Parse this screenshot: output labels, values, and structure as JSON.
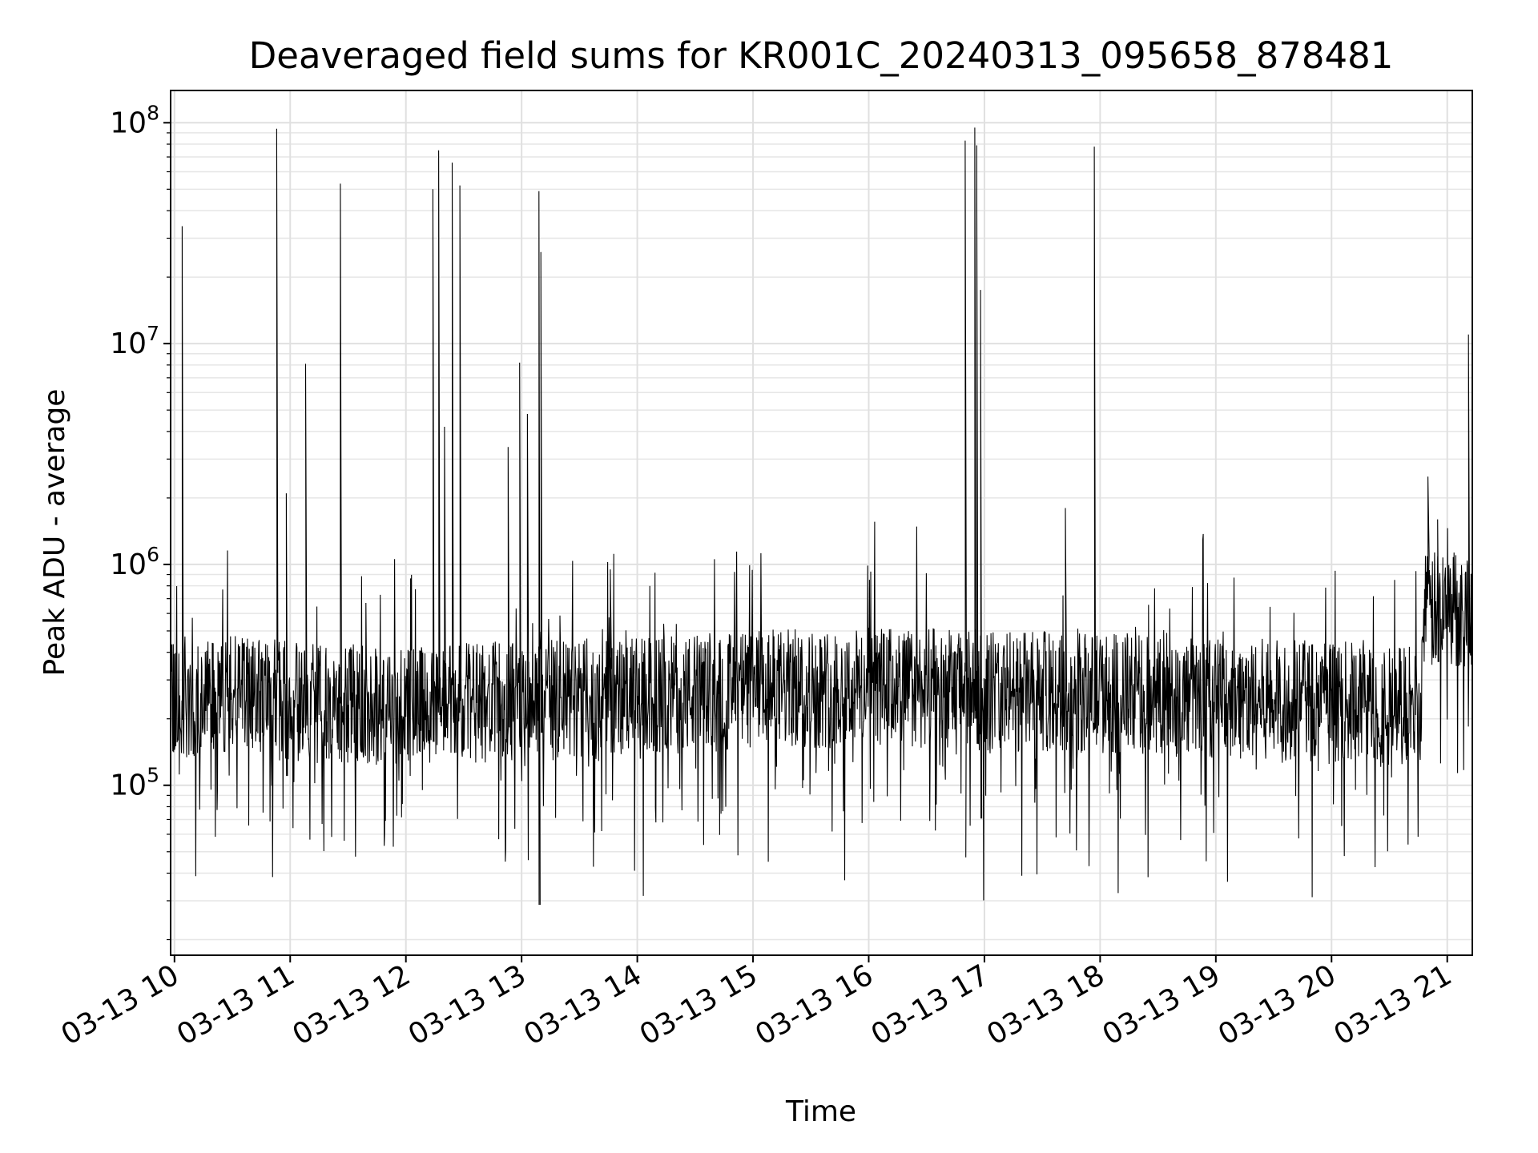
{
  "chart_data": {
    "type": "line",
    "title": "Deaveraged field sums for KR001C_20240313_095658_878481",
    "xlabel": "Time",
    "ylabel": "Peak ADU - average",
    "yscale": "log",
    "grid": true,
    "legend": "none",
    "line_color": "#000000",
    "xlim": [
      "2024-03-13 09:58",
      "2024-03-13 21:13"
    ],
    "ylim": [
      17000,
      140000000
    ],
    "x_ticks": [
      {
        "value": "2024-03-13 10:00",
        "label": "03-13 10"
      },
      {
        "value": "2024-03-13 11:00",
        "label": "03-13 11"
      },
      {
        "value": "2024-03-13 12:00",
        "label": "03-13 12"
      },
      {
        "value": "2024-03-13 13:00",
        "label": "03-13 13"
      },
      {
        "value": "2024-03-13 14:00",
        "label": "03-13 14"
      },
      {
        "value": "2024-03-13 15:00",
        "label": "03-13 15"
      },
      {
        "value": "2024-03-13 16:00",
        "label": "03-13 16"
      },
      {
        "value": "2024-03-13 17:00",
        "label": "03-13 17"
      },
      {
        "value": "2024-03-13 18:00",
        "label": "03-13 18"
      },
      {
        "value": "2024-03-13 19:00",
        "label": "03-13 19"
      },
      {
        "value": "2024-03-13 20:00",
        "label": "03-13 20"
      },
      {
        "value": "2024-03-13 21:00",
        "label": "03-13 21"
      }
    ],
    "y_ticks": [
      {
        "value": 100000,
        "base": "10",
        "exp": "5"
      },
      {
        "value": 1000000,
        "base": "10",
        "exp": "6"
      },
      {
        "value": 10000000,
        "base": "10",
        "exp": "7"
      },
      {
        "value": 100000000,
        "base": "10",
        "exp": "8"
      }
    ],
    "baseline": [
      {
        "x": "2024-03-13 10:00",
        "y": 250000
      },
      {
        "x": "2024-03-13 10:30",
        "y": 260000
      },
      {
        "x": "2024-03-13 11:00",
        "y": 240000
      },
      {
        "x": "2024-03-13 12:00",
        "y": 230000
      },
      {
        "x": "2024-03-13 13:00",
        "y": 240000
      },
      {
        "x": "2024-03-13 14:00",
        "y": 250000
      },
      {
        "x": "2024-03-13 15:00",
        "y": 270000
      },
      {
        "x": "2024-03-13 16:00",
        "y": 280000
      },
      {
        "x": "2024-03-13 17:00",
        "y": 270000
      },
      {
        "x": "2024-03-13 18:00",
        "y": 260000
      },
      {
        "x": "2024-03-13 19:00",
        "y": 250000
      },
      {
        "x": "2024-03-13 20:00",
        "y": 240000
      },
      {
        "x": "2024-03-13 20:46",
        "y": 230000
      },
      {
        "x": "2024-03-13 20:48",
        "y": 600000
      },
      {
        "x": "2024-03-13 21:13",
        "y": 650000
      }
    ],
    "peaks": [
      {
        "x": "2024-03-13 10:04",
        "y": 34000000
      },
      {
        "x": "2024-03-13 10:53",
        "y": 94000000
      },
      {
        "x": "2024-03-13 10:58",
        "y": 2100000
      },
      {
        "x": "2024-03-13 11:08",
        "y": 8100000
      },
      {
        "x": "2024-03-13 11:26",
        "y": 53000000
      },
      {
        "x": "2024-03-13 12:14",
        "y": 50000000
      },
      {
        "x": "2024-03-13 12:17",
        "y": 75000000
      },
      {
        "x": "2024-03-13 12:20",
        "y": 4200000
      },
      {
        "x": "2024-03-13 12:24",
        "y": 66000000
      },
      {
        "x": "2024-03-13 12:28",
        "y": 52000000
      },
      {
        "x": "2024-03-13 12:53",
        "y": 3400000
      },
      {
        "x": "2024-03-13 12:59",
        "y": 8200000
      },
      {
        "x": "2024-03-13 13:03",
        "y": 4800000
      },
      {
        "x": "2024-03-13 13:09",
        "y": 49000000
      },
      {
        "x": "2024-03-13 13:10",
        "y": 26000000
      },
      {
        "x": "2024-03-13 13:46",
        "y": 950000
      },
      {
        "x": "2024-03-13 16:50",
        "y": 83000000
      },
      {
        "x": "2024-03-13 16:55",
        "y": 95000000
      },
      {
        "x": "2024-03-13 16:56",
        "y": 79000000
      },
      {
        "x": "2024-03-13 16:58",
        "y": 17500000
      },
      {
        "x": "2024-03-13 17:42",
        "y": 1800000
      },
      {
        "x": "2024-03-13 17:57",
        "y": 78000000
      },
      {
        "x": "2024-03-13 20:50",
        "y": 2500000
      },
      {
        "x": "2024-03-13 20:55",
        "y": 1600000
      },
      {
        "x": "2024-03-13 21:11",
        "y": 11000000
      }
    ]
  }
}
